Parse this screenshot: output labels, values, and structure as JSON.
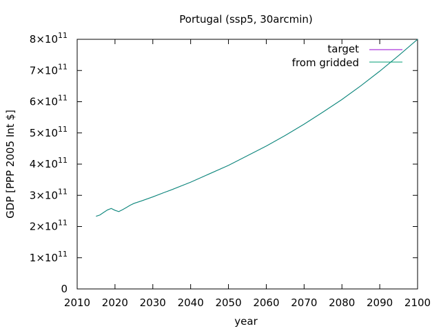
{
  "chart_data": {
    "type": "line",
    "title": "Portugal (ssp5, 30arcmin)",
    "xlabel": "year",
    "ylabel": "GDP [PPP 2005 Int $]",
    "xlim": [
      2010,
      2100
    ],
    "ylim": [
      0,
      800000000000
    ],
    "x_ticks": [
      "2010",
      "2020",
      "2030",
      "2040",
      "2050",
      "2060",
      "2070",
      "2080",
      "2090",
      "2100"
    ],
    "y_ticks": [
      {
        "mantissa": "0",
        "exp": ""
      },
      {
        "mantissa": "1×10",
        "exp": "11"
      },
      {
        "mantissa": "2×10",
        "exp": "11"
      },
      {
        "mantissa": "3×10",
        "exp": "11"
      },
      {
        "mantissa": "4×10",
        "exp": "11"
      },
      {
        "mantissa": "5×10",
        "exp": "11"
      },
      {
        "mantissa": "6×10",
        "exp": "11"
      },
      {
        "mantissa": "7×10",
        "exp": "11"
      },
      {
        "mantissa": "8×10",
        "exp": "11"
      }
    ],
    "y_tick_values": [
      0,
      100000000000,
      200000000000,
      300000000000,
      400000000000,
      500000000000,
      600000000000,
      700000000000,
      800000000000
    ],
    "grid": false,
    "legend_position": "top-right",
    "x": [
      2015,
      2016,
      2017,
      2018,
      2019,
      2020,
      2021,
      2022,
      2023,
      2024,
      2025,
      2027,
      2030,
      2033,
      2035,
      2040,
      2045,
      2050,
      2055,
      2060,
      2065,
      2070,
      2075,
      2080,
      2085,
      2090,
      2095,
      2100
    ],
    "series": [
      {
        "name": "target",
        "color": "#9400d3",
        "values": [
          233000000000.0,
          237000000000.0,
          245000000000.0,
          253000000000.0,
          258000000000.0,
          252000000000.0,
          248000000000.0,
          254000000000.0,
          261000000000.0,
          268000000000.0,
          274000000000.0,
          282000000000.0,
          295000000000.0,
          309000000000.0,
          318000000000.0,
          342000000000.0,
          369000000000.0,
          396000000000.0,
          427000000000.0,
          458000000000.0,
          492000000000.0,
          528000000000.0,
          567000000000.0,
          607000000000.0,
          651000000000.0,
          698000000000.0,
          748000000000.0,
          800000000000.0
        ]
      },
      {
        "name": "from gridded",
        "color": "#009e73",
        "values": [
          233000000000.0,
          237000000000.0,
          245000000000.0,
          253000000000.0,
          258000000000.0,
          252000000000.0,
          248000000000.0,
          254000000000.0,
          261000000000.0,
          268000000000.0,
          274000000000.0,
          282000000000.0,
          295000000000.0,
          309000000000.0,
          318000000000.0,
          342000000000.0,
          369000000000.0,
          396000000000.0,
          427000000000.0,
          458000000000.0,
          492000000000.0,
          528000000000.0,
          567000000000.0,
          607000000000.0,
          651000000000.0,
          698000000000.0,
          748000000000.0,
          800000000000.0
        ]
      }
    ]
  }
}
